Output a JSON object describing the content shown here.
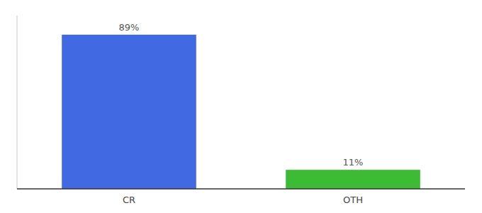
{
  "chart_data": {
    "type": "bar",
    "categories": [
      "CR",
      "OTH"
    ],
    "values": [
      89,
      11
    ],
    "value_labels": [
      "89%",
      "11%"
    ],
    "colors": [
      "#4169e1",
      "#3dbb35"
    ],
    "ylim": [
      0,
      100
    ],
    "data_labels": true,
    "tick_labels": "x"
  }
}
